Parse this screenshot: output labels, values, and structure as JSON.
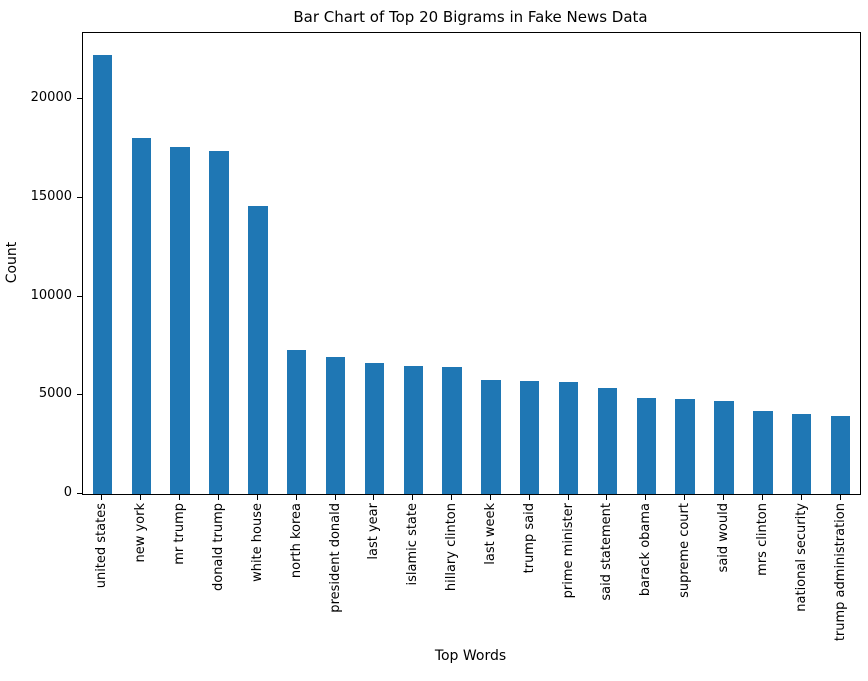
{
  "chart_data": {
    "type": "bar",
    "title": "Bar Chart of Top 20 Bigrams in Fake News Data",
    "xlabel": "Top Words",
    "ylabel": "Count",
    "categories": [
      "united states",
      "new york",
      "mr trump",
      "donald trump",
      "white house",
      "north korea",
      "president donald",
      "last year",
      "islamic state",
      "hillary clinton",
      "last week",
      "trump said",
      "prime minister",
      "said statement",
      "barack obama",
      "supreme court",
      "said would",
      "mrs clinton",
      "national security",
      "trump administration"
    ],
    "values": [
      22250,
      18050,
      17600,
      17400,
      14600,
      7300,
      6950,
      6650,
      6500,
      6450,
      5800,
      5750,
      5700,
      5350,
      4850,
      4800,
      4700,
      4200,
      4050,
      3950
    ],
    "yticks": [
      0,
      5000,
      10000,
      15000,
      20000
    ],
    "ylim": [
      0,
      23360
    ],
    "bar_color": "#1f77b4",
    "axis_color": "#000000",
    "grid": false,
    "legend": null,
    "bar_width_fraction": 0.5,
    "x_tick_rotation_deg": 90
  }
}
